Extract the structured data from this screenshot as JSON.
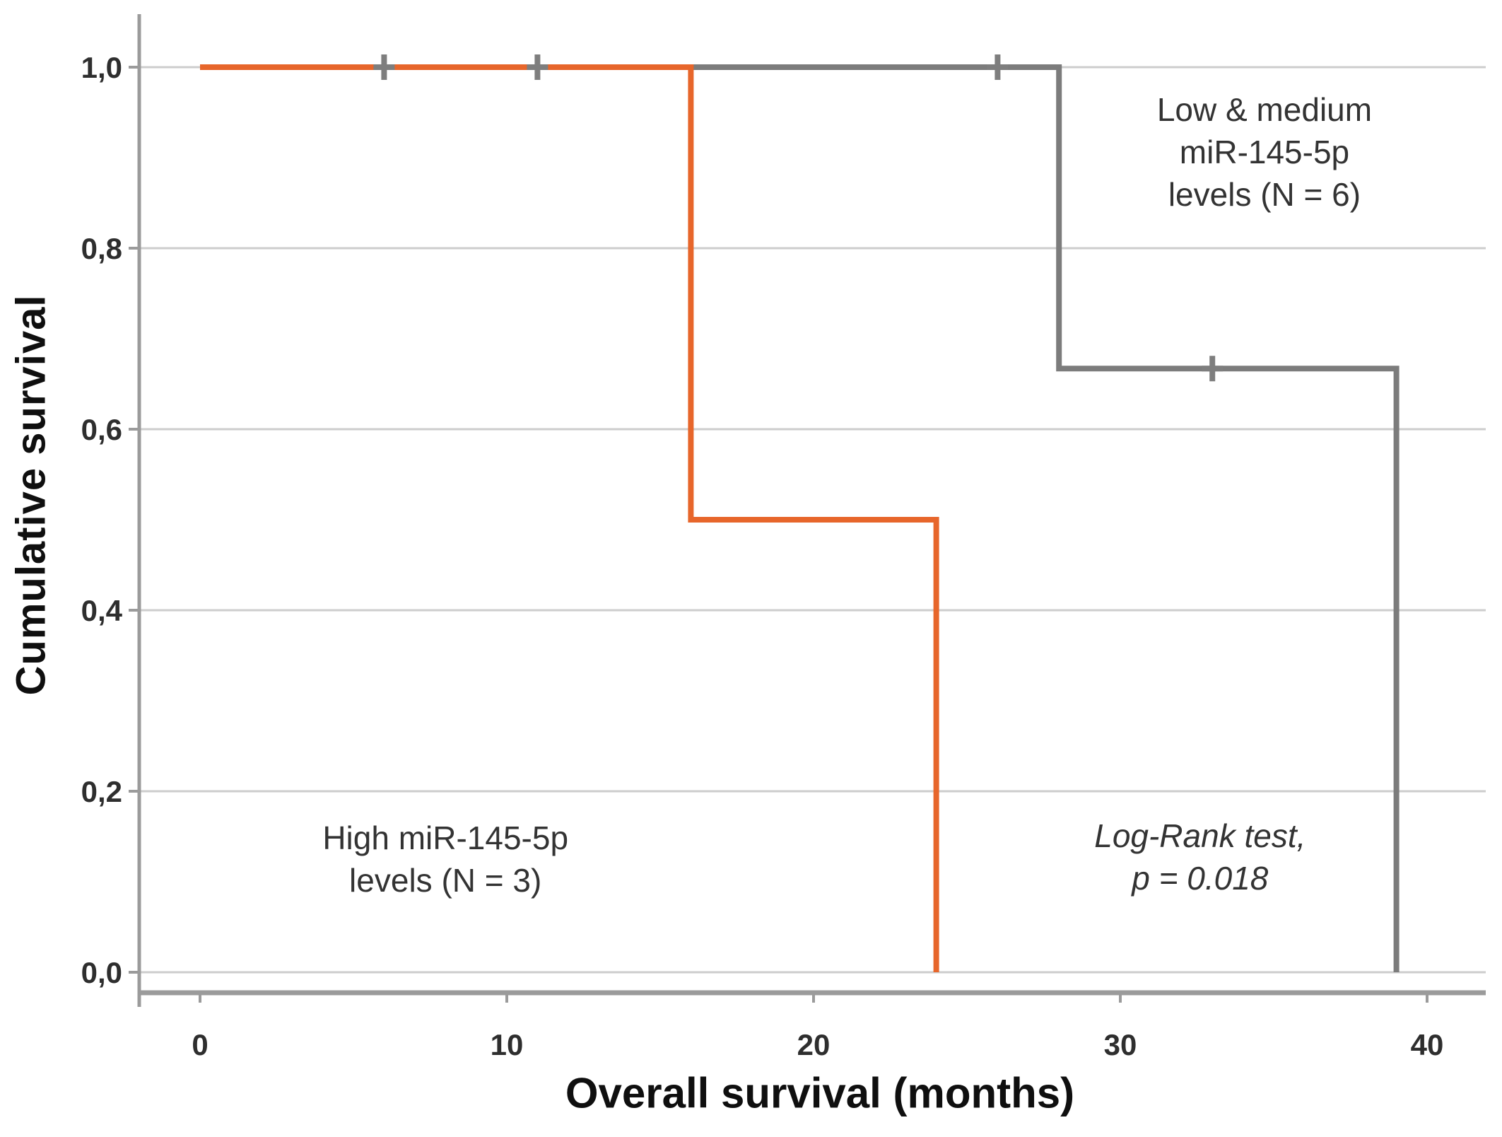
{
  "figure": {
    "kind": "Kaplan-Meier survival plot",
    "background_color": "#ffffff"
  },
  "chart_data": {
    "type": "line",
    "chart_kind": "kaplan-meier-step",
    "title": "",
    "xlabel": "Overall survival (months)",
    "ylabel": "Cumulative survival",
    "xlim": [
      0,
      40
    ],
    "ylim": [
      0.0,
      1.0
    ],
    "grid": "horizontal",
    "legend_position": "none",
    "x_ticks": {
      "values": [
        0,
        10,
        20,
        30,
        40
      ],
      "labels": [
        "0",
        "10",
        "20",
        "30",
        "40"
      ]
    },
    "y_ticks": {
      "values": [
        1.0,
        0.8,
        0.6,
        0.4,
        0.2,
        0.0
      ],
      "labels": [
        "1,0",
        "0,8",
        "0,6",
        "0,4",
        "0,2",
        "0,0"
      ]
    },
    "series": [
      {
        "name": "Low & medium miR-145-5p levels (N = 6)",
        "color": "#7c7c7c",
        "step_points": [
          [
            0,
            1.0
          ],
          [
            28,
            1.0
          ],
          [
            28,
            0.667
          ],
          [
            39,
            0.667
          ],
          [
            39,
            0.0
          ]
        ],
        "censor_marks": [
          [
            6,
            1.0
          ],
          [
            11,
            1.0
          ],
          [
            26,
            1.0
          ],
          [
            33,
            0.667
          ]
        ]
      },
      {
        "name": "High miR-145-5p levels (N = 3)",
        "color": "#e7662b",
        "step_points": [
          [
            0,
            1.0
          ],
          [
            16,
            1.0
          ],
          [
            16,
            0.5
          ],
          [
            24,
            0.5
          ],
          [
            24,
            0.0
          ]
        ],
        "censor_marks": []
      }
    ],
    "censor_color": "#7e7e7e",
    "gridline_color": "#cdcdcd",
    "axis_line_color": "#9b9b9b",
    "tick_label_color": "#2e2e2e",
    "annotations": [
      {
        "id": "group-low-medium",
        "lines": [
          "Low & medium",
          "miR-145-5p",
          "levels (N = 6)"
        ],
        "x_months": 34.7,
        "y_survival": 0.906,
        "italic": false
      },
      {
        "id": "group-high",
        "lines": [
          "High miR-145-5p",
          "levels (N = 3)"
        ],
        "x_months": 8.0,
        "y_survival": 0.125,
        "italic": false
      },
      {
        "id": "logrank-result",
        "lines": [
          "Log-Rank test,",
          "p = 0.018"
        ],
        "x_months": 32.6,
        "y_survival": 0.127,
        "italic": true
      }
    ]
  }
}
